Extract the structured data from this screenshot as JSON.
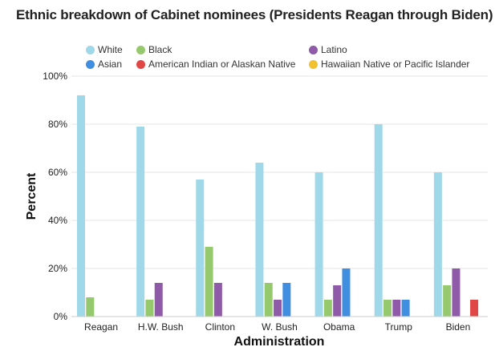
{
  "chart_data": {
    "type": "bar",
    "title": "Ethnic breakdown of Cabinet nominees (Presidents Reagan through Biden)",
    "xlabel": "Administration",
    "ylabel": "Percent",
    "ylim": [
      0,
      100
    ],
    "y_ticks": [
      "0%",
      "20%",
      "40%",
      "60%",
      "80%",
      "100%"
    ],
    "grid": true,
    "legend_position": "top",
    "categories": [
      "Reagan",
      "H.W. Bush",
      "Clinton",
      "W. Bush",
      "Obama",
      "Trump",
      "Biden"
    ],
    "series": [
      {
        "name": "White",
        "color": "#9fd8e8",
        "values": [
          92,
          79,
          57,
          64,
          60,
          80,
          60
        ]
      },
      {
        "name": "Black",
        "color": "#96c86d",
        "values": [
          8,
          7,
          29,
          14,
          7,
          7,
          13
        ]
      },
      {
        "name": "Latino",
        "color": "#8f5ba8",
        "values": [
          0,
          14,
          14,
          7,
          13,
          7,
          20
        ]
      },
      {
        "name": "Asian",
        "color": "#3f8ee0",
        "values": [
          0,
          0,
          0,
          14,
          20,
          7,
          0
        ]
      },
      {
        "name": "American Indian or Alaskan Native",
        "color": "#e04848",
        "values": [
          0,
          0,
          0,
          0,
          0,
          0,
          7
        ]
      },
      {
        "name": "Hawaiian Native or Pacific Islander",
        "color": "#f2c12e",
        "values": [
          0,
          0,
          0,
          0,
          0,
          0,
          0
        ]
      }
    ]
  }
}
